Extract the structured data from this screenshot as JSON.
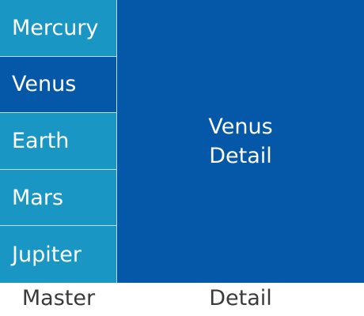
{
  "master": {
    "items": [
      {
        "label": "Mercury",
        "selected": false
      },
      {
        "label": "Venus",
        "selected": true
      },
      {
        "label": "Earth",
        "selected": false
      },
      {
        "label": "Mars",
        "selected": false
      },
      {
        "label": "Jupiter",
        "selected": false
      }
    ],
    "caption": "Master"
  },
  "detail": {
    "title": "Venus",
    "subtitle": "Detail",
    "caption": "Detail"
  },
  "colors": {
    "master_item": "#1a96c4",
    "selected": "#0557a8",
    "divider": "#b9e0ee",
    "caption_text": "#3a3a3a"
  }
}
